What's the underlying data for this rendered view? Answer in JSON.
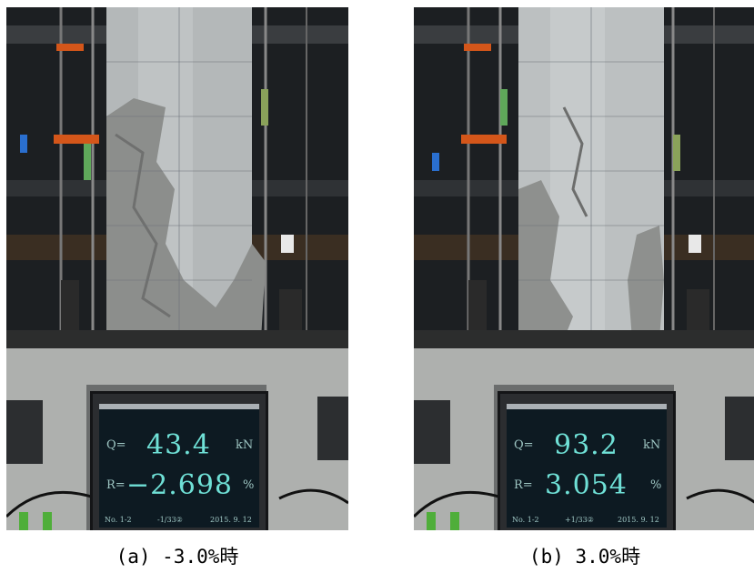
{
  "panels": [
    {
      "caption": "(a)  -3.0%時",
      "display": {
        "q_label": "Q=",
        "q_value": "43.4",
        "q_unit": "kN",
        "r_label": "R=",
        "r_value": "−2.698",
        "r_unit": "%",
        "no": "No. 1-2",
        "cycle": "-1/33②",
        "date": "2015. 9. 12"
      }
    },
    {
      "caption": "(b)  3.0%時",
      "display": {
        "q_label": "Q=",
        "q_value": "93.2",
        "q_unit": "kN",
        "r_label": "R=",
        "r_value": "3.054",
        "r_unit": "%",
        "no": "No. 1-2",
        "cycle": "+1/33②",
        "date": "2015. 9. 12"
      }
    }
  ]
}
